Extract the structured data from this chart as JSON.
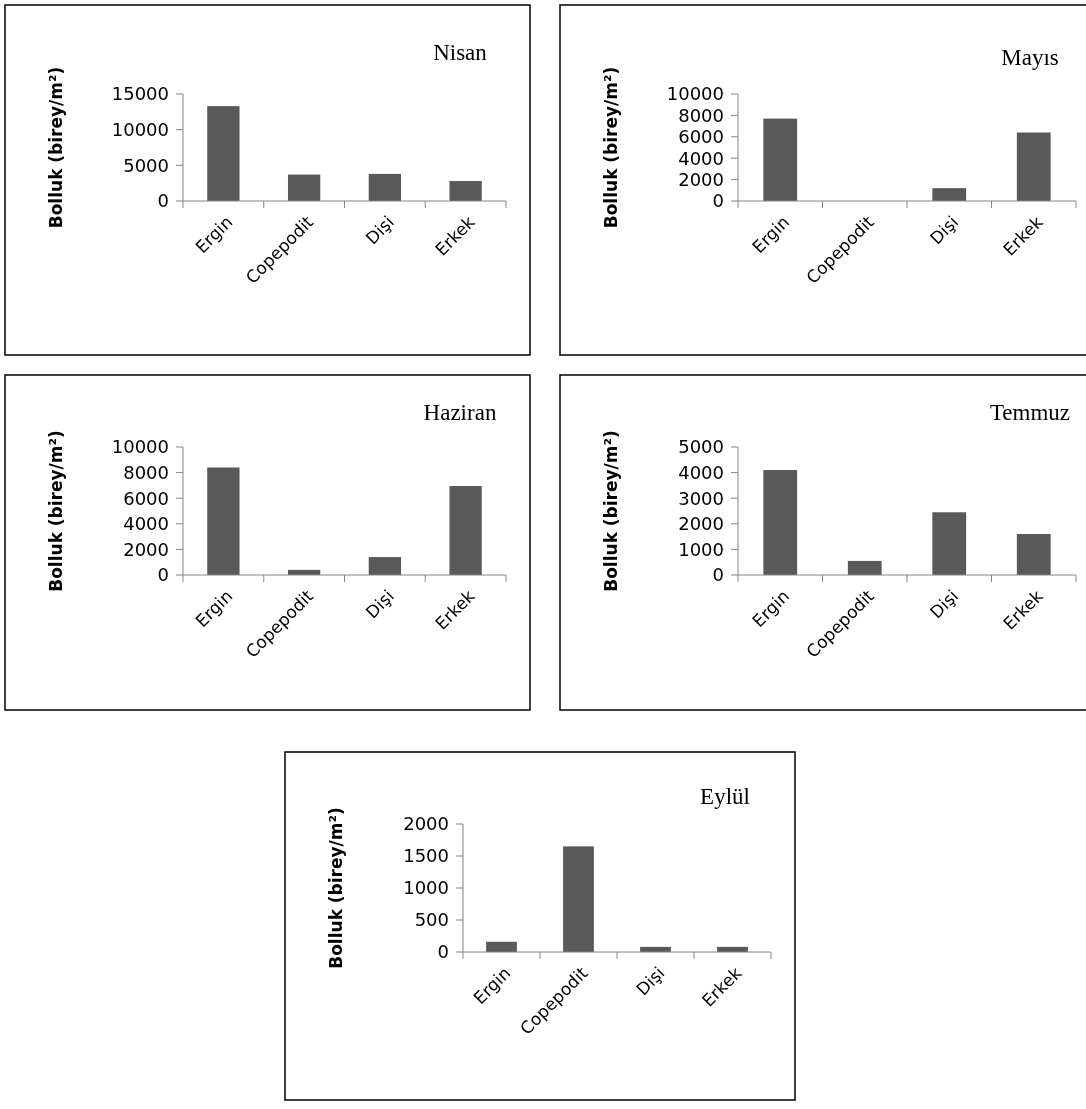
{
  "chart_data": [
    {
      "type": "bar",
      "title": "Nisan",
      "ylabel": "Bolluk (birey/m²)",
      "categories": [
        "Ergin",
        "Copepodit",
        "Dişi",
        "Erkek"
      ],
      "values": [
        13300,
        3700,
        3800,
        2800
      ],
      "color": "#595959",
      "ylim": [
        0,
        15000
      ],
      "yticks": [
        0,
        5000,
        10000,
        15000
      ]
    },
    {
      "type": "bar",
      "title": "Mayıs",
      "ylabel": "Bolluk (birey/m²)",
      "categories": [
        "Ergin",
        "Copepodit",
        "Dişi",
        "Erkek"
      ],
      "values": [
        7700,
        0,
        1200,
        6400
      ],
      "color": "#595959",
      "ylim": [
        0,
        10000
      ],
      "yticks": [
        0,
        2000,
        4000,
        6000,
        8000,
        10000
      ]
    },
    {
      "type": "bar",
      "title": "Haziran",
      "ylabel": "Bolluk (birey/m²)",
      "categories": [
        "Ergin",
        "Copepodit",
        "Dişi",
        "Erkek"
      ],
      "values": [
        8400,
        400,
        1400,
        6950
      ],
      "color": "#595959",
      "ylim": [
        0,
        10000
      ],
      "yticks": [
        0,
        2000,
        4000,
        6000,
        8000,
        10000
      ]
    },
    {
      "type": "bar",
      "title": "Temmuz",
      "ylabel": "Bolluk (birey/m²)",
      "categories": [
        "Ergin",
        "Copepodit",
        "Dişi",
        "Erkek"
      ],
      "values": [
        4100,
        550,
        2450,
        1600
      ],
      "color": "#595959",
      "ylim": [
        0,
        5000
      ],
      "yticks": [
        0,
        1000,
        2000,
        3000,
        4000,
        5000
      ]
    },
    {
      "type": "bar",
      "title": "Eylül",
      "ylabel": "Bolluk (birey/m²)",
      "categories": [
        "Ergin",
        "Copepodit",
        "Dişi",
        "Erkek"
      ],
      "values": [
        160,
        1650,
        80,
        80
      ],
      "color": "#595959",
      "ylim": [
        0,
        2000
      ],
      "yticks": [
        0,
        500,
        1000,
        1500,
        2000
      ]
    }
  ]
}
